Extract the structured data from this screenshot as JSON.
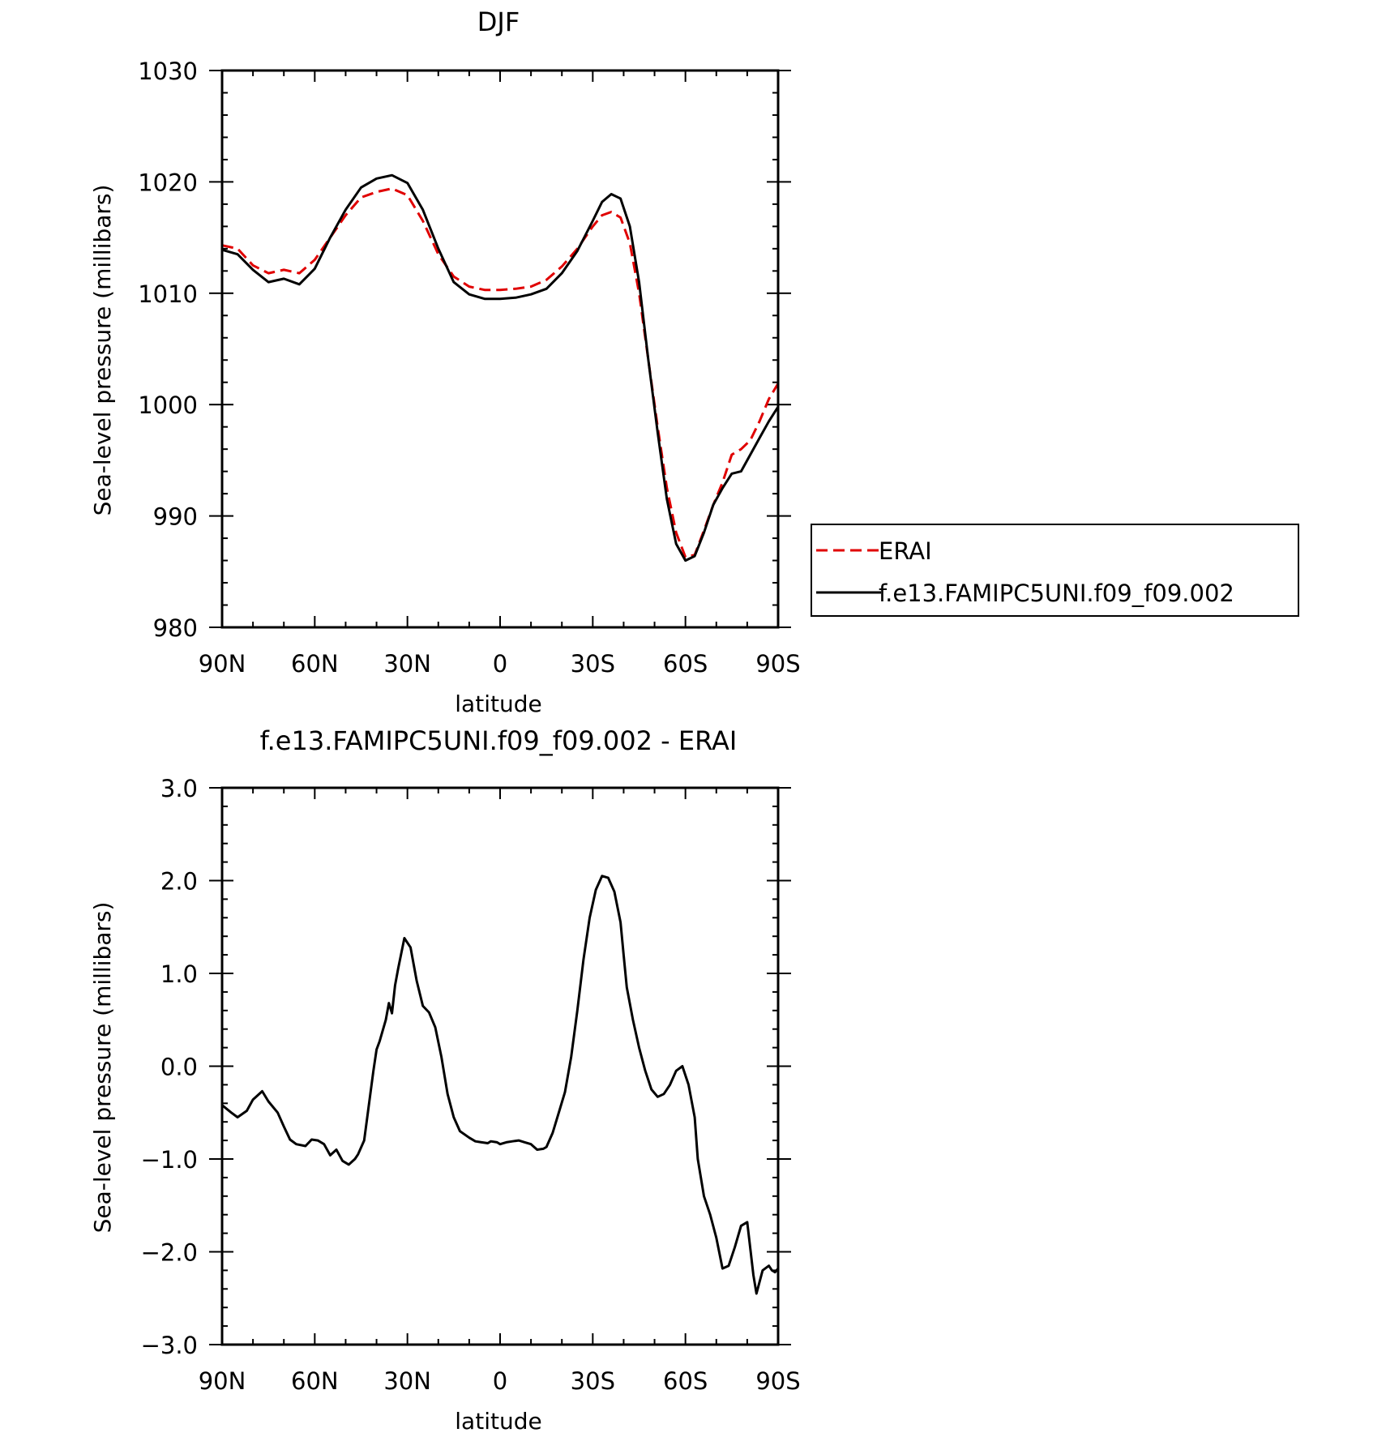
{
  "chart_data": [
    {
      "type": "line",
      "title": "DJF",
      "xlabel": "latitude",
      "ylabel": "Sea-level pressure (millibars)",
      "xlim": [
        90,
        -90
      ],
      "ylim": [
        980,
        1030
      ],
      "xticks": [
        90,
        60,
        30,
        0,
        -30,
        -60,
        -90
      ],
      "xtick_labels": [
        "90N",
        "60N",
        "30N",
        "0",
        "30S",
        "60S",
        "90S"
      ],
      "yticks": [
        980,
        990,
        1000,
        1010,
        1020,
        1030
      ],
      "ytick_labels": [
        "980",
        "990",
        "1000",
        "1010",
        "1020",
        "1030"
      ],
      "legend_position": "right",
      "series": [
        {
          "name": "ERAI",
          "color": "#e00000",
          "dash": "dashed",
          "x": [
            90,
            85,
            80,
            75,
            70,
            65,
            60,
            55,
            50,
            45,
            40,
            35,
            30,
            25,
            20,
            15,
            10,
            5,
            0,
            -5,
            -10,
            -15,
            -20,
            -25,
            -30,
            -33,
            -36,
            -39,
            -42,
            -45,
            -48,
            -51,
            -54,
            -57,
            -60,
            -63,
            -66,
            -69,
            -72,
            -75,
            -78,
            -81,
            -84,
            -87,
            -90
          ],
          "y": [
            1014.3,
            1014.0,
            1012.5,
            1011.8,
            1012.1,
            1011.8,
            1013.0,
            1015.0,
            1017.0,
            1018.6,
            1019.1,
            1019.4,
            1018.8,
            1016.5,
            1013.5,
            1011.5,
            1010.6,
            1010.3,
            1010.3,
            1010.4,
            1010.6,
            1011.2,
            1012.4,
            1014.0,
            1016.0,
            1017.0,
            1017.3,
            1016.8,
            1014.5,
            1010.0,
            1004.0,
            998.0,
            992.5,
            988.5,
            986.3,
            986.5,
            988.7,
            991.0,
            993.0,
            995.5,
            996.0,
            996.8,
            998.5,
            1000.5,
            1001.9
          ]
        },
        {
          "name": "f.e13.FAMIPC5UNI.f09_f09.002",
          "color": "#000000",
          "dash": "solid",
          "x": [
            90,
            85,
            80,
            75,
            70,
            65,
            60,
            55,
            50,
            45,
            40,
            35,
            30,
            25,
            20,
            15,
            10,
            5,
            0,
            -5,
            -10,
            -15,
            -20,
            -25,
            -30,
            -33,
            -36,
            -39,
            -42,
            -45,
            -48,
            -51,
            -54,
            -57,
            -60,
            -63,
            -66,
            -69,
            -72,
            -75,
            -78,
            -81,
            -84,
            -87,
            -90
          ],
          "y": [
            1013.9,
            1013.5,
            1012.1,
            1011.0,
            1011.3,
            1010.8,
            1012.2,
            1015.0,
            1017.5,
            1019.5,
            1020.3,
            1020.6,
            1019.9,
            1017.5,
            1014.0,
            1011.0,
            1009.9,
            1009.5,
            1009.5,
            1009.6,
            1009.9,
            1010.4,
            1011.8,
            1013.8,
            1016.5,
            1018.2,
            1018.9,
            1018.5,
            1016.0,
            1011.0,
            1004.0,
            997.5,
            991.5,
            987.5,
            986.0,
            986.4,
            988.5,
            991.0,
            992.5,
            993.8,
            994.0,
            995.5,
            997.0,
            998.5,
            999.8
          ]
        }
      ]
    },
    {
      "type": "line",
      "title": "f.e13.FAMIPC5UNI.f09_f09.002 - ERAI",
      "xlabel": "latitude",
      "ylabel": "Sea-level pressure (millibars)",
      "xlim": [
        90,
        -90
      ],
      "ylim": [
        -3.0,
        3.0
      ],
      "xticks": [
        90,
        60,
        30,
        0,
        -30,
        -60,
        -90
      ],
      "xtick_labels": [
        "90N",
        "60N",
        "30N",
        "0",
        "30S",
        "60S",
        "90S"
      ],
      "yticks": [
        -3.0,
        -2.0,
        -1.0,
        0.0,
        1.0,
        2.0,
        3.0
      ],
      "ytick_labels": [
        "−3.0",
        "−2.0",
        "−1.0",
        "0.0",
        "1.0",
        "2.0",
        "3.0"
      ],
      "series": [
        {
          "color": "#000000",
          "dash": "solid",
          "x": [
            90,
            87,
            85,
            82,
            80,
            77,
            75,
            72,
            70,
            68,
            66,
            63,
            61,
            59,
            57,
            55,
            53,
            51,
            49,
            47,
            46,
            44,
            43,
            42,
            41,
            40,
            39,
            37,
            36,
            35,
            34,
            33,
            31,
            29,
            27,
            25,
            23,
            21,
            19,
            17,
            15,
            13,
            10,
            8,
            6,
            4,
            3,
            1,
            0,
            -2,
            -4,
            -6,
            -8,
            -10,
            -12,
            -14,
            -15,
            -17,
            -19,
            -21,
            -23,
            -25,
            -27,
            -29,
            -31,
            -33,
            -35,
            -37,
            -39,
            -40,
            -41,
            -43,
            -45,
            -47,
            -49,
            -51,
            -53,
            -55,
            -57,
            -59,
            -61,
            -63,
            -64,
            -66,
            -68,
            -70,
            -72,
            -74,
            -76,
            -78,
            -80,
            -82,
            -83,
            -85,
            -87,
            -88,
            -89,
            -90
          ],
          "y": [
            -0.42,
            -0.5,
            -0.55,
            -0.48,
            -0.36,
            -0.27,
            -0.38,
            -0.5,
            -0.65,
            -0.79,
            -0.84,
            -0.86,
            -0.79,
            -0.8,
            -0.84,
            -0.96,
            -0.9,
            -1.02,
            -1.06,
            -1.0,
            -0.95,
            -0.8,
            -0.55,
            -0.3,
            -0.05,
            0.18,
            0.27,
            0.5,
            0.68,
            0.57,
            0.87,
            1.05,
            1.38,
            1.28,
            0.92,
            0.65,
            0.58,
            0.42,
            0.1,
            -0.3,
            -0.55,
            -0.7,
            -0.77,
            -0.81,
            -0.82,
            -0.83,
            -0.81,
            -0.82,
            -0.84,
            -0.82,
            -0.81,
            -0.8,
            -0.82,
            -0.84,
            -0.9,
            -0.89,
            -0.87,
            -0.72,
            -0.5,
            -0.28,
            0.1,
            0.6,
            1.15,
            1.6,
            1.9,
            2.05,
            2.03,
            1.88,
            1.55,
            1.2,
            0.85,
            0.5,
            0.2,
            -0.05,
            -0.25,
            -0.33,
            -0.3,
            -0.2,
            -0.05,
            0.0,
            -0.2,
            -0.55,
            -1.0,
            -1.4,
            -1.6,
            -1.85,
            -2.18,
            -2.15,
            -1.95,
            -1.72,
            -1.68,
            -2.25,
            -2.45,
            -2.2,
            -2.15,
            -2.2,
            -2.22,
            -2.18
          ]
        }
      ]
    }
  ],
  "legend": {
    "items": [
      {
        "label": "ERAI",
        "color": "#e00000",
        "dash": "dashed"
      },
      {
        "label": "f.e13.FAMIPC5UNI.f09_f09.002",
        "color": "#000000",
        "dash": "solid"
      }
    ]
  }
}
